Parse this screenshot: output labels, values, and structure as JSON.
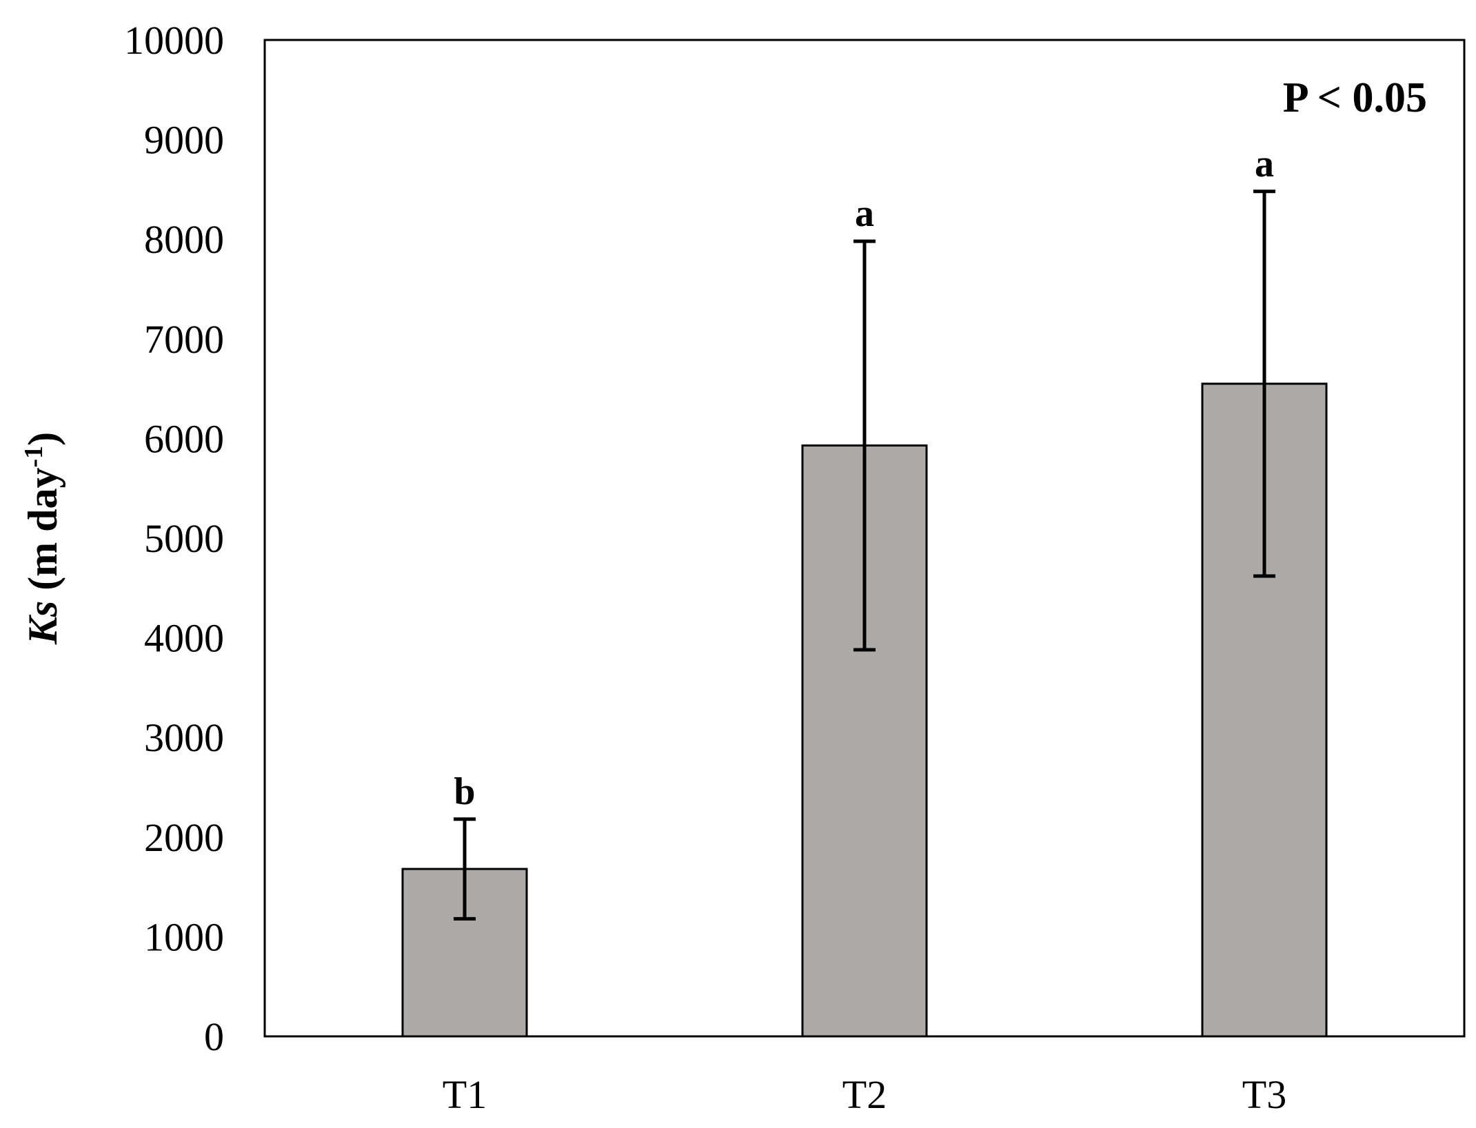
{
  "chart_data": {
    "type": "bar",
    "categories": [
      "T1",
      "T2",
      "T3"
    ],
    "values": [
      1680,
      5930,
      6550
    ],
    "errors": [
      500,
      2050,
      1930
    ],
    "significance_letters": [
      "b",
      "a",
      "a"
    ],
    "annotation": "P < 0.05",
    "title": "",
    "xlabel": "",
    "ylabel": {
      "italic": "Ks",
      "rest": " (m day",
      "superscript": "-1",
      "close": ")"
    },
    "ylim": [
      0,
      10000
    ],
    "yticks": [
      0,
      1000,
      2000,
      3000,
      4000,
      5000,
      6000,
      7000,
      8000,
      9000,
      10000
    ],
    "grid": false,
    "legend": "none",
    "colors": {
      "bar_fill": "#aeaaaa",
      "bar_stroke": "#000000",
      "axis": "#000000",
      "error_bar": "#000000"
    }
  }
}
